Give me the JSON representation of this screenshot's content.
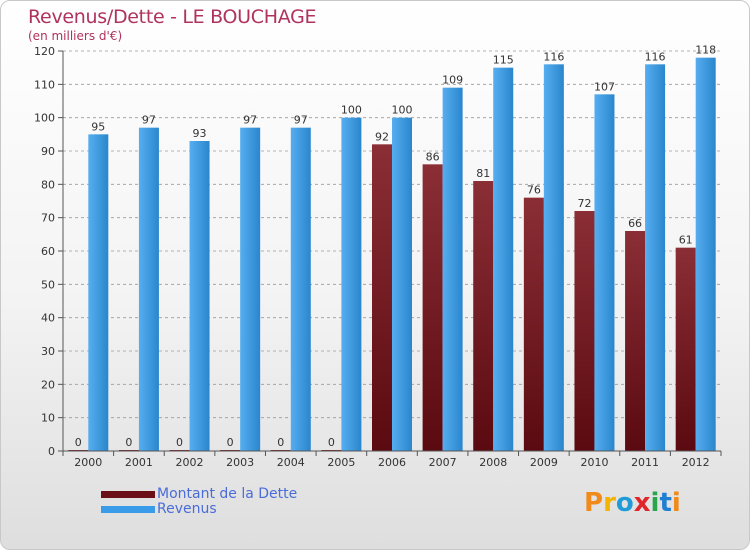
{
  "title": "Revenus/Dette - LE BOUCHAGE",
  "subtitle": "(en milliers d'€)",
  "colors": {
    "dette_top": "#8b2e36",
    "dette_bottom": "#5a0a10",
    "revenus_light": "#56aef0",
    "revenus_dark": "#2a86cc",
    "axis_text": "#333333",
    "grid": "#9a9a9a",
    "title": "#b0325e",
    "legend_text": "#4a6cd8"
  },
  "chart_data": {
    "type": "bar",
    "title": "Revenus/Dette - LE BOUCHAGE",
    "subtitle": "(en milliers d'€)",
    "categories": [
      "2000",
      "2001",
      "2002",
      "2003",
      "2004",
      "2005",
      "2006",
      "2007",
      "2008",
      "2009",
      "2010",
      "2011",
      "2012"
    ],
    "series": [
      {
        "name": "Montant de la Dette",
        "values": [
          0,
          0,
          0,
          0,
          0,
          0,
          92,
          86,
          81,
          76,
          72,
          66,
          61
        ]
      },
      {
        "name": "Revenus",
        "values": [
          95,
          97,
          93,
          97,
          97,
          100,
          100,
          109,
          115,
          116,
          107,
          116,
          118
        ]
      }
    ],
    "ylim": [
      0,
      120
    ],
    "yticks": [
      0,
      10,
      20,
      30,
      40,
      50,
      60,
      70,
      80,
      90,
      100,
      110,
      120
    ],
    "grid": true,
    "legend_position": "bottom-left"
  },
  "legend": {
    "items": [
      {
        "label": "Montant de la Dette",
        "color": "#6b0f18"
      },
      {
        "label": "Revenus",
        "color": "#3a9be8"
      }
    ]
  },
  "logo": {
    "text": "Proxiti",
    "letter_colors": [
      "#f08a1a",
      "#f2b400",
      "#1f9bd7",
      "#e0262a",
      "#2aa54a",
      "#1f7fd1",
      "#f08a1a"
    ]
  }
}
